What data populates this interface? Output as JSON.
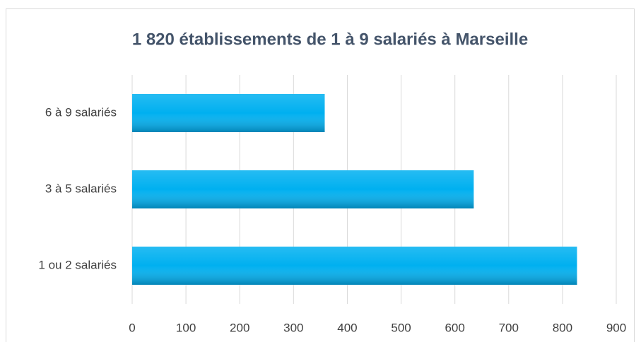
{
  "chart_data": {
    "type": "bar",
    "orientation": "horizontal",
    "title": "1 820 établissements de 1 à 9 salariés à Marseille",
    "categories": [
      "1 ou 2 salariés",
      "3 à 5 salariés",
      "6 à 9 salariés"
    ],
    "values": [
      827,
      635,
      358
    ],
    "color": "#00b0f0",
    "xlim": [
      0,
      900
    ],
    "xticks": [
      0,
      100,
      200,
      300,
      400,
      500,
      600,
      700,
      800,
      900
    ],
    "grid": true
  }
}
